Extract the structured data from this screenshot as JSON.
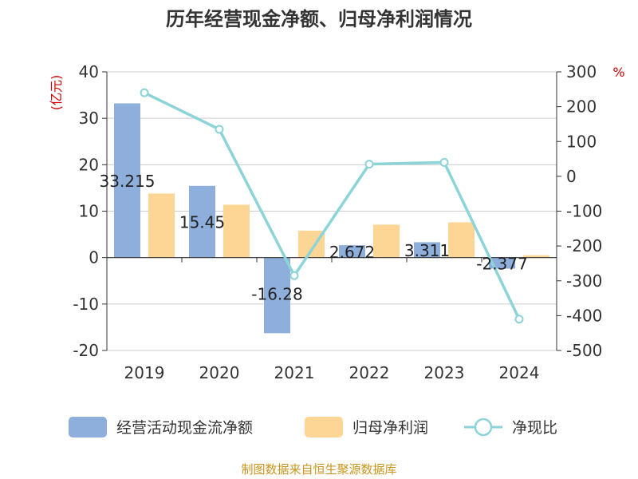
{
  "chart_data": {
    "type": "bar",
    "title": "历年经营现金净额、归母净利润情况",
    "source": "制图数据来自恒生聚源数据库",
    "categories": [
      "2019",
      "2020",
      "2021",
      "2022",
      "2023",
      "2024"
    ],
    "y_left": {
      "label": "(亿元)",
      "ylim": [
        -20,
        40
      ],
      "ticks": [
        "40",
        "30",
        "20",
        "10",
        "0",
        "-10",
        "-20"
      ]
    },
    "y_right": {
      "label": "%",
      "ylim": [
        -500,
        300
      ],
      "ticks": [
        "300",
        "200",
        "100",
        "0",
        "-100",
        "-200",
        "-300",
        "-400",
        "-500"
      ]
    },
    "series": [
      {
        "name": "经营活动现金流净额",
        "type": "bar",
        "axis": "left",
        "color": "#8eaedc",
        "values": [
          33.215,
          15.45,
          -16.28,
          2.672,
          3.311,
          -2.377
        ],
        "labels": [
          "33.215",
          "15.45",
          "-16.28",
          "2.672",
          "3.311",
          "-2.377"
        ]
      },
      {
        "name": "归母净利润",
        "type": "bar",
        "axis": "left",
        "color": "#fdd695",
        "values": [
          13.8,
          11.4,
          5.8,
          7.1,
          7.6,
          0.5
        ]
      },
      {
        "name": "净现比",
        "type": "line",
        "axis": "right",
        "color": "#8cd4d8",
        "values": [
          240,
          135,
          -285,
          35,
          40,
          -410
        ]
      }
    ],
    "legend_position": "bottom",
    "grid": true
  }
}
